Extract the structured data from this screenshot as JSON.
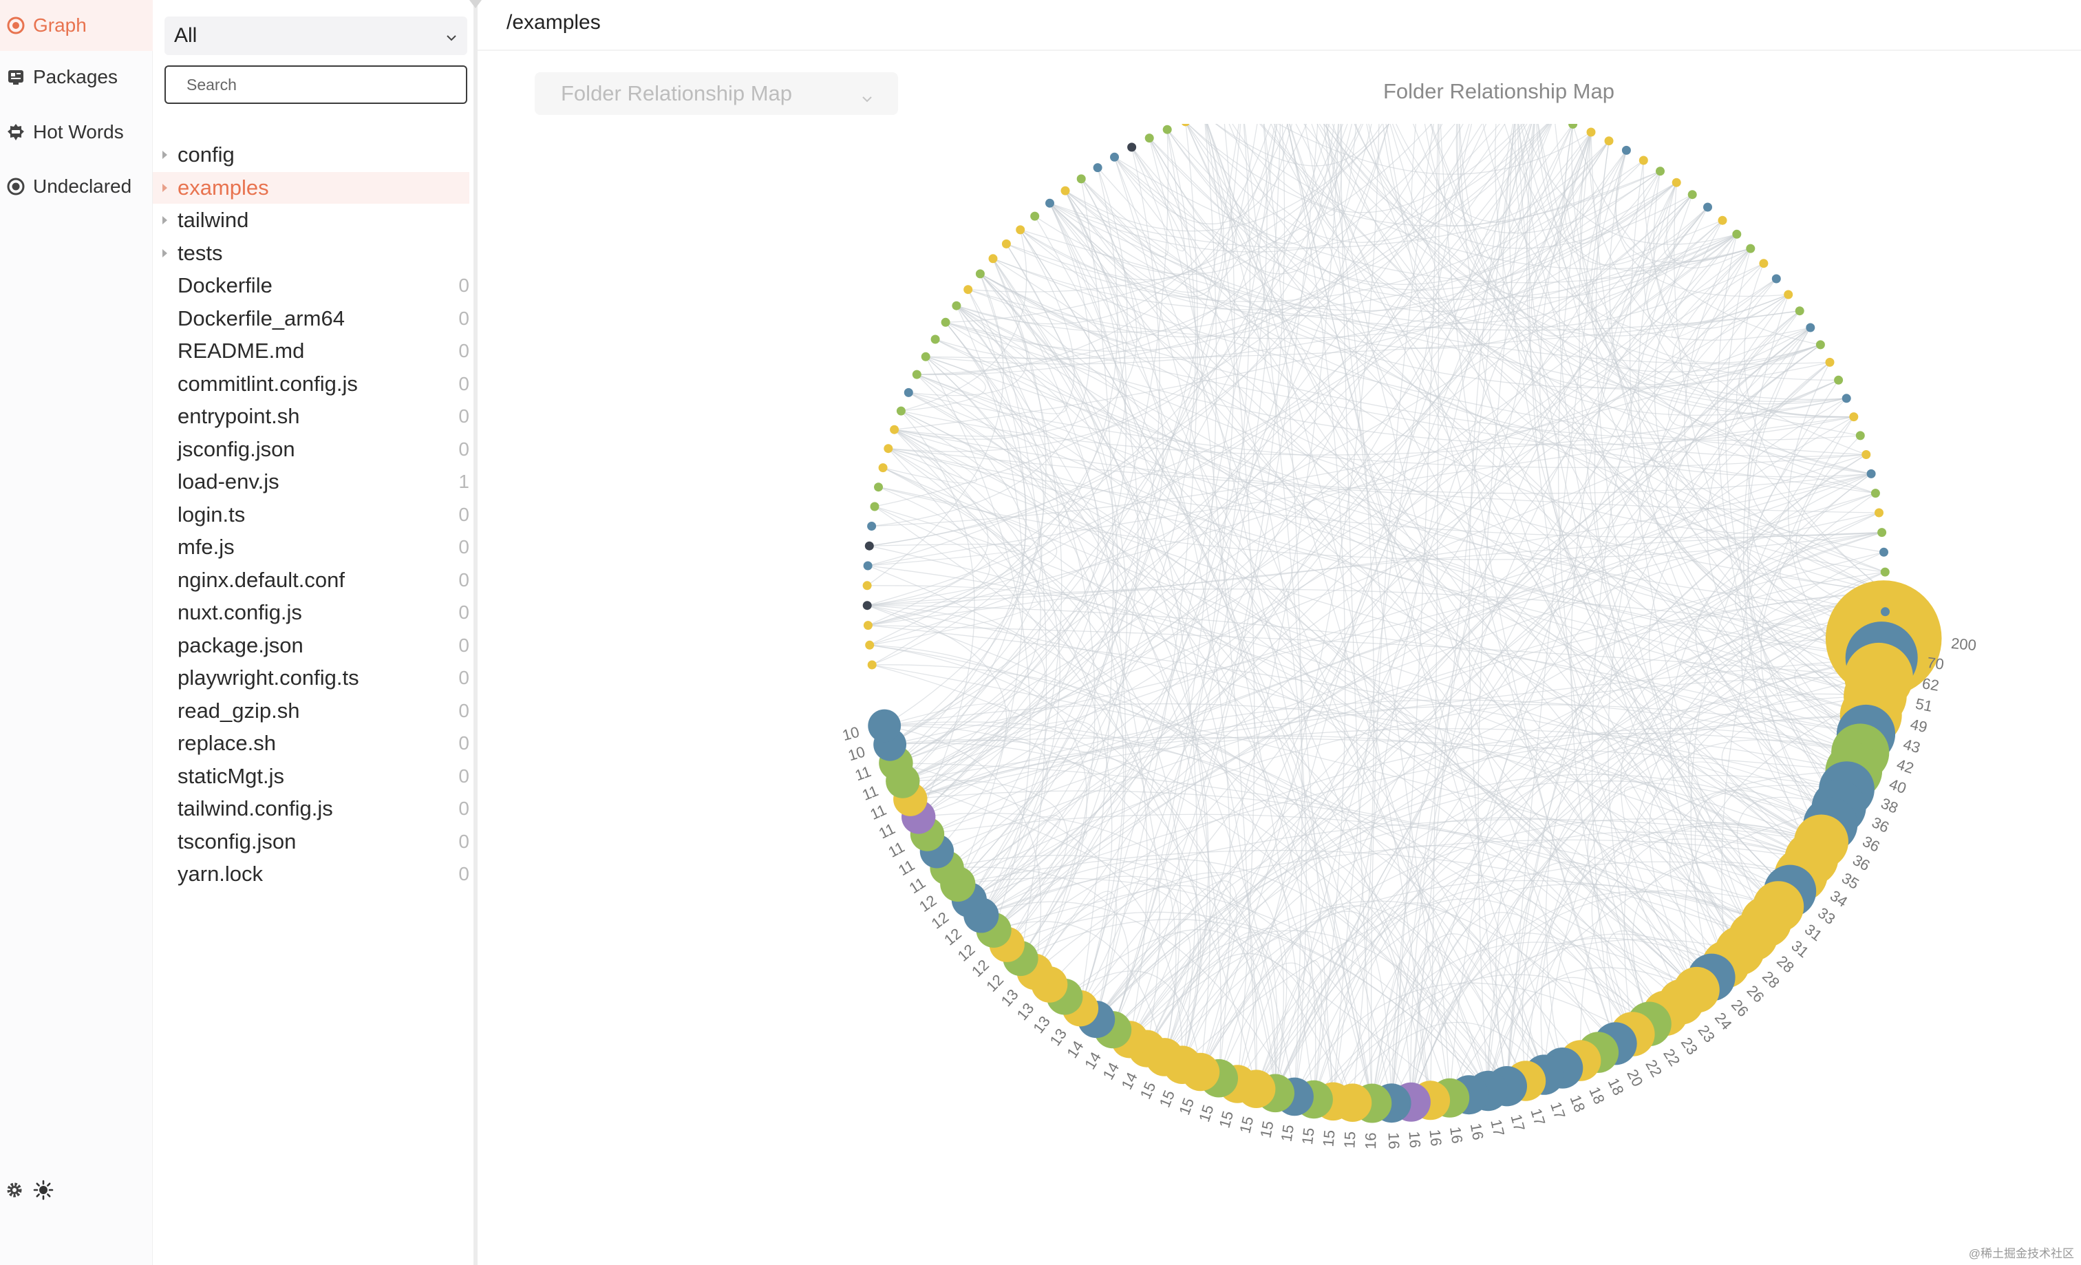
{
  "nav": {
    "items": [
      {
        "label": "Graph",
        "icon": "graph-icon",
        "active": true
      },
      {
        "label": "Packages",
        "icon": "packages-icon",
        "active": false
      },
      {
        "label": "Hot Words",
        "icon": "hot-words-icon",
        "active": false
      },
      {
        "label": "Undeclared",
        "icon": "undeclared-icon",
        "active": false
      }
    ],
    "bottom_icons": [
      "gear-icon",
      "sun-icon"
    ]
  },
  "tree": {
    "filter_value": "All",
    "search_placeholder": "Search",
    "items": [
      {
        "name": "config",
        "folder": true,
        "selected": false,
        "count": ""
      },
      {
        "name": "examples",
        "folder": true,
        "selected": true,
        "count": ""
      },
      {
        "name": "tailwind",
        "folder": true,
        "selected": false,
        "count": ""
      },
      {
        "name": "tests",
        "folder": true,
        "selected": false,
        "count": ""
      },
      {
        "name": "Dockerfile",
        "folder": false,
        "selected": false,
        "count": "0"
      },
      {
        "name": "Dockerfile_arm64",
        "folder": false,
        "selected": false,
        "count": "0"
      },
      {
        "name": "README.md",
        "folder": false,
        "selected": false,
        "count": "0"
      },
      {
        "name": "commitlint.config.js",
        "folder": false,
        "selected": false,
        "count": "0"
      },
      {
        "name": "entrypoint.sh",
        "folder": false,
        "selected": false,
        "count": "0"
      },
      {
        "name": "jsconfig.json",
        "folder": false,
        "selected": false,
        "count": "0"
      },
      {
        "name": "load-env.js",
        "folder": false,
        "selected": false,
        "count": "1"
      },
      {
        "name": "login.ts",
        "folder": false,
        "selected": false,
        "count": "0"
      },
      {
        "name": "mfe.js",
        "folder": false,
        "selected": false,
        "count": "0"
      },
      {
        "name": "nginx.default.conf",
        "folder": false,
        "selected": false,
        "count": "0"
      },
      {
        "name": "nuxt.config.js",
        "folder": false,
        "selected": false,
        "count": "0"
      },
      {
        "name": "package.json",
        "folder": false,
        "selected": false,
        "count": "0"
      },
      {
        "name": "playwright.config.ts",
        "folder": false,
        "selected": false,
        "count": "0"
      },
      {
        "name": "read_gzip.sh",
        "folder": false,
        "selected": false,
        "count": "0"
      },
      {
        "name": "replace.sh",
        "folder": false,
        "selected": false,
        "count": "0"
      },
      {
        "name": "staticMgt.js",
        "folder": false,
        "selected": false,
        "count": "0"
      },
      {
        "name": "tailwind.config.js",
        "folder": false,
        "selected": false,
        "count": "0"
      },
      {
        "name": "tsconfig.json",
        "folder": false,
        "selected": false,
        "count": "0"
      },
      {
        "name": "yarn.lock",
        "folder": false,
        "selected": false,
        "count": "0"
      }
    ]
  },
  "main": {
    "path": "/examples",
    "dropdown_value": "Folder Relationship Map",
    "title": "Folder Relationship Map"
  },
  "colors": {
    "accent": "#e8734f",
    "yellow": "#e9c440",
    "blue": "#5a89a7",
    "green": "#96bd58",
    "purple": "#9b7cc0",
    "dark": "#3d4450",
    "edge": "#c9ced3"
  },
  "graph_nodes": [
    {
      "label": "200",
      "color": "yellow"
    },
    {
      "label": "70",
      "color": "blue"
    },
    {
      "label": "62",
      "color": "yellow"
    },
    {
      "label": "51",
      "color": "yellow"
    },
    {
      "label": "49",
      "color": "yellow"
    },
    {
      "label": "43",
      "color": "blue"
    },
    {
      "label": "42",
      "color": "green"
    },
    {
      "label": "40",
      "color": "green"
    },
    {
      "label": "38",
      "color": "blue"
    },
    {
      "label": "36",
      "color": "blue"
    },
    {
      "label": "36",
      "color": "blue"
    },
    {
      "label": "36",
      "color": "yellow"
    },
    {
      "label": "35",
      "color": "yellow"
    },
    {
      "label": "34",
      "color": "yellow"
    },
    {
      "label": "33",
      "color": "blue"
    },
    {
      "label": "31",
      "color": "yellow"
    },
    {
      "label": "31",
      "color": "yellow"
    },
    {
      "label": "28",
      "color": "yellow"
    },
    {
      "label": "28",
      "color": "yellow"
    },
    {
      "label": "26",
      "color": "yellow"
    },
    {
      "label": "26",
      "color": "blue"
    },
    {
      "label": "24",
      "color": "yellow"
    },
    {
      "label": "23",
      "color": "yellow"
    },
    {
      "label": "23",
      "color": "yellow"
    },
    {
      "label": "22",
      "color": "green"
    },
    {
      "label": "22",
      "color": "yellow"
    },
    {
      "label": "20",
      "color": "blue"
    },
    {
      "label": "18",
      "color": "green"
    },
    {
      "label": "18",
      "color": "yellow"
    },
    {
      "label": "18",
      "color": "blue"
    },
    {
      "label": "17",
      "color": "blue"
    },
    {
      "label": "17",
      "color": "yellow"
    },
    {
      "label": "17",
      "color": "blue"
    },
    {
      "label": "17",
      "color": "blue"
    },
    {
      "label": "16",
      "color": "blue"
    },
    {
      "label": "16",
      "color": "green"
    },
    {
      "label": "16",
      "color": "yellow"
    },
    {
      "label": "16",
      "color": "purple"
    },
    {
      "label": "16",
      "color": "blue"
    },
    {
      "label": "16",
      "color": "green"
    },
    {
      "label": "15",
      "color": "yellow"
    },
    {
      "label": "15",
      "color": "yellow"
    },
    {
      "label": "15",
      "color": "green"
    },
    {
      "label": "15",
      "color": "blue"
    },
    {
      "label": "15",
      "color": "green"
    },
    {
      "label": "15",
      "color": "yellow"
    },
    {
      "label": "15",
      "color": "yellow"
    },
    {
      "label": "15",
      "color": "green"
    },
    {
      "label": "15",
      "color": "yellow"
    },
    {
      "label": "15",
      "color": "yellow"
    },
    {
      "label": "15",
      "color": "yellow"
    },
    {
      "label": "14",
      "color": "yellow"
    },
    {
      "label": "14",
      "color": "yellow"
    },
    {
      "label": "14",
      "color": "green"
    },
    {
      "label": "14",
      "color": "blue"
    },
    {
      "label": "13",
      "color": "yellow"
    },
    {
      "label": "13",
      "color": "green"
    },
    {
      "label": "13",
      "color": "yellow"
    },
    {
      "label": "13",
      "color": "yellow"
    },
    {
      "label": "12",
      "color": "green"
    },
    {
      "label": "12",
      "color": "yellow"
    },
    {
      "label": "12",
      "color": "green"
    },
    {
      "label": "12",
      "color": "blue"
    },
    {
      "label": "12",
      "color": "blue"
    },
    {
      "label": "12",
      "color": "green"
    },
    {
      "label": "11",
      "color": "green"
    },
    {
      "label": "11",
      "color": "blue"
    },
    {
      "label": "11",
      "color": "green"
    },
    {
      "label": "11",
      "color": "purple"
    },
    {
      "label": "11",
      "color": "yellow"
    },
    {
      "label": "11",
      "color": "green"
    },
    {
      "label": "11",
      "color": "green"
    },
    {
      "label": "10",
      "color": "blue"
    },
    {
      "label": "10",
      "color": "blue"
    }
  ],
  "graph_small_node_colors": [
    "yellow",
    "yellow",
    "yellow",
    "dark",
    "yellow",
    "blue",
    "dark",
    "blue",
    "green",
    "green",
    "yellow",
    "yellow",
    "yellow",
    "green",
    "blue",
    "green",
    "green",
    "green",
    "green",
    "green",
    "yellow",
    "green",
    "yellow",
    "yellow",
    "yellow",
    "green",
    "blue",
    "yellow",
    "green",
    "blue",
    "blue",
    "dark",
    "green",
    "green",
    "yellow",
    "green",
    "blue",
    "green",
    "blue",
    "blue",
    "green",
    "blue",
    "blue",
    "green",
    "yellow",
    "blue",
    "green",
    "blue",
    "yellow",
    "green",
    "yellow",
    "blue",
    "green",
    "purple",
    "green",
    "yellow",
    "yellow",
    "blue",
    "yellow",
    "green",
    "yellow",
    "green",
    "blue",
    "yellow",
    "green",
    "green",
    "yellow",
    "blue",
    "yellow",
    "green",
    "blue",
    "green",
    "yellow",
    "green",
    "blue",
    "yellow",
    "green",
    "yellow",
    "blue",
    "green",
    "yellow",
    "green",
    "blue",
    "green",
    "yellow",
    "blue"
  ],
  "watermark": "@稀土掘金技术社区"
}
